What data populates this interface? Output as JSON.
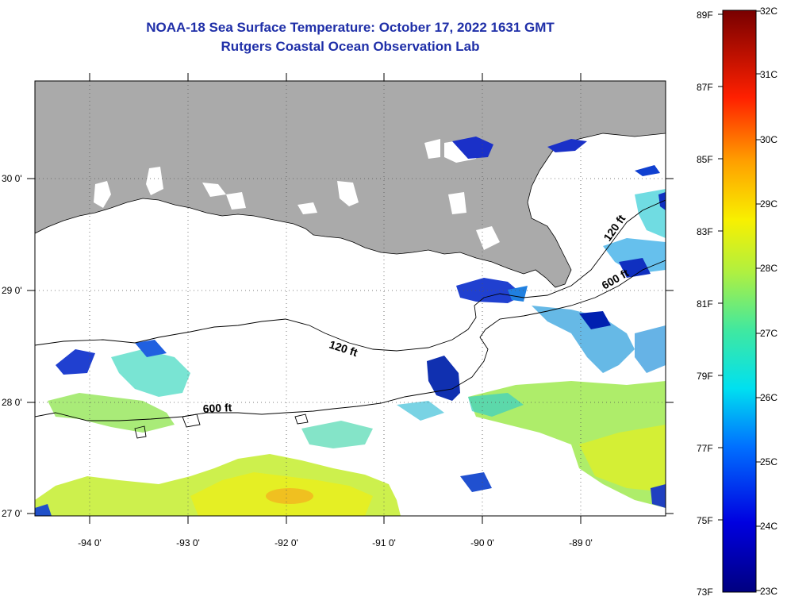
{
  "header": {
    "title": "NOAA-18 Sea Surface Temperature:  October 17, 2022 1631 GMT",
    "subtitle": "Rutgers Coastal Ocean Observation Lab"
  },
  "map": {
    "lat_labels": [
      "30 0'",
      "29 0'",
      "28 0'",
      "27 0'"
    ],
    "lon_labels": [
      "-94 0'",
      "-93 0'",
      "-92 0'",
      "-91 0'",
      "-90 0'",
      "-89 0'"
    ],
    "contours": [
      "120 ft",
      "600 ft",
      "120 ft",
      "600 ft"
    ]
  },
  "colorbar": {
    "fahrenheit": [
      "89F",
      "87F",
      "85F",
      "83F",
      "81F",
      "79F",
      "77F",
      "75F",
      "73F"
    ],
    "celsius": [
      "32C",
      "31C",
      "30C",
      "29C",
      "28C",
      "27C",
      "26C",
      "25C",
      "24C",
      "23C"
    ]
  },
  "colors": {
    "land": "#aaaaaa",
    "title": "#1f2fa8",
    "cold": "#00008c",
    "warm": "#8b0000"
  }
}
